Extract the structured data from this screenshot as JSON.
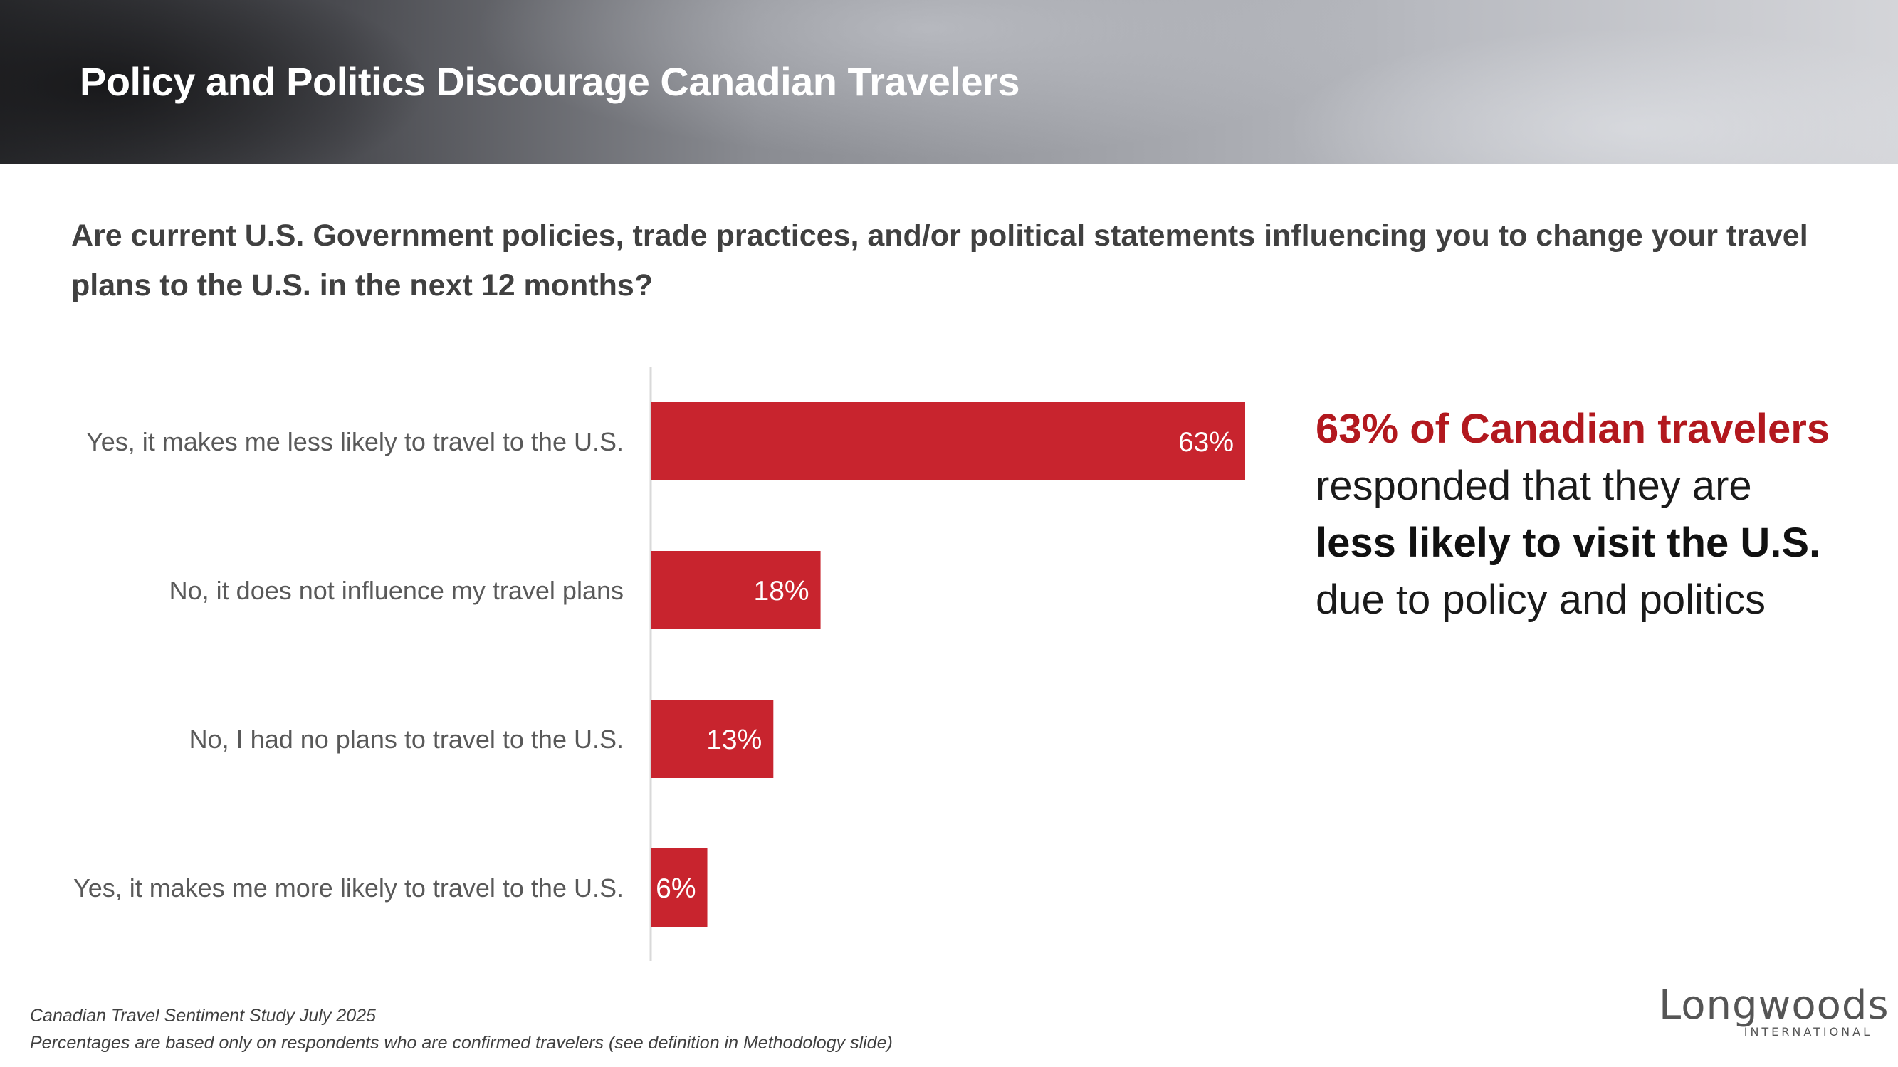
{
  "header": {
    "title": "Policy and Politics Discourage Canadian Travelers"
  },
  "question": "Are current U.S. Government policies, trade practices, and/or political statements influencing you to change your travel plans to the U.S. in the next 12 months?",
  "callout": {
    "highlight": "63% of Canadian travelers",
    "line2": "responded that they are",
    "bold": "less likely to visit the U.S.",
    "line4": "due to policy and politics"
  },
  "footnotes": [
    "Canadian Travel Sentiment Study July 2025",
    "Percentages are based only on respondents who are confirmed travelers (see definition in Methodology slide)"
  ],
  "logo": {
    "word": "Longwoods",
    "sub": "INTERNATIONAL"
  },
  "colors": {
    "bar": "#c8242e",
    "highlight": "#b2181e",
    "axis": "#d9d9d9"
  },
  "chart_data": {
    "type": "bar",
    "orientation": "horizontal",
    "categories": [
      "Yes, it makes me less likely to travel to the U.S.",
      "No, it does not influence my travel plans",
      "No, I had no plans to travel to the U.S.",
      "Yes, it makes me more likely to travel to the U.S."
    ],
    "values": [
      63,
      18,
      13,
      6
    ],
    "value_labels": [
      "63%",
      "18%",
      "13%",
      "6%"
    ],
    "xlim": [
      0,
      100
    ],
    "grid": false
  }
}
